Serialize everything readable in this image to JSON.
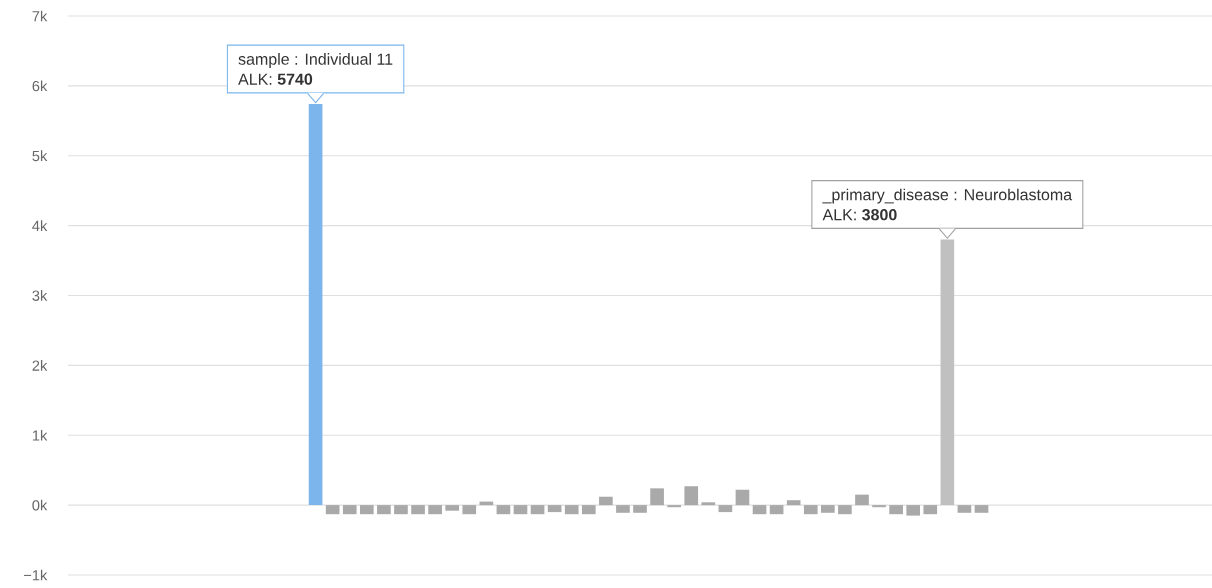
{
  "chart_data": {
    "type": "bar",
    "categories": [
      null,
      null,
      null,
      null,
      null,
      null,
      null,
      null,
      null,
      null,
      null,
      null,
      null,
      null,
      null,
      null,
      null,
      null,
      null,
      null,
      null,
      null,
      null,
      null,
      null,
      null,
      null,
      null,
      null,
      null,
      null,
      null,
      null,
      null,
      null,
      null,
      null,
      null,
      null,
      null,
      null,
      null,
      null,
      null,
      null,
      null,
      null,
      null,
      null,
      null,
      null,
      null,
      null,
      null,
      null,
      null,
      null,
      null,
      null,
      null,
      null,
      null,
      null,
      null,
      null,
      null,
      null
    ],
    "values": [
      null,
      null,
      null,
      null,
      null,
      null,
      null,
      null,
      null,
      null,
      null,
      null,
      null,
      null,
      5740,
      -130,
      -130,
      -130,
      -130,
      -130,
      -130,
      -130,
      -80,
      -130,
      50,
      -130,
      -130,
      -130,
      -100,
      -130,
      -130,
      120,
      -110,
      -110,
      240,
      -30,
      270,
      40,
      -100,
      220,
      -130,
      -130,
      70,
      -130,
      -110,
      -130,
      150,
      -30,
      -130,
      -150,
      -130,
      3800,
      -110,
      -110,
      null,
      null,
      null,
      null,
      null,
      null,
      null,
      null,
      null,
      null,
      null,
      null,
      null
    ],
    "colors": [
      "#a9a9a9",
      "#a9a9a9",
      "#a9a9a9",
      "#a9a9a9",
      "#a9a9a9",
      "#a9a9a9",
      "#a9a9a9",
      "#a9a9a9",
      "#a9a9a9",
      "#a9a9a9",
      "#a9a9a9",
      "#a9a9a9",
      "#a9a9a9",
      "#a9a9a9",
      "#7cb5ec",
      "#a9a9a9",
      "#a9a9a9",
      "#a9a9a9",
      "#a9a9a9",
      "#a9a9a9",
      "#a9a9a9",
      "#a9a9a9",
      "#a9a9a9",
      "#a9a9a9",
      "#a9a9a9",
      "#a9a9a9",
      "#a9a9a9",
      "#a9a9a9",
      "#a9a9a9",
      "#a9a9a9",
      "#a9a9a9",
      "#a9a9a9",
      "#a9a9a9",
      "#a9a9a9",
      "#a9a9a9",
      "#a9a9a9",
      "#a9a9a9",
      "#a9a9a9",
      "#a9a9a9",
      "#a9a9a9",
      "#a9a9a9",
      "#a9a9a9",
      "#a9a9a9",
      "#a9a9a9",
      "#a9a9a9",
      "#a9a9a9",
      "#a9a9a9",
      "#a9a9a9",
      "#a9a9a9",
      "#a9a9a9",
      "#a9a9a9",
      "#c0c0c0",
      "#a9a9a9",
      "#a9a9a9",
      "#a9a9a9",
      "#a9a9a9",
      "#a9a9a9",
      "#a9a9a9",
      "#a9a9a9",
      "#a9a9a9",
      "#a9a9a9",
      "#a9a9a9",
      "#a9a9a9",
      "#a9a9a9",
      "#a9a9a9",
      "#a9a9a9",
      "#a9a9a9"
    ],
    "ylim": [
      -1000,
      7000
    ],
    "yticks": [
      {
        "value": -1000,
        "label": "−1k"
      },
      {
        "value": 0,
        "label": "0k"
      },
      {
        "value": 1000,
        "label": "1k"
      },
      {
        "value": 2000,
        "label": "2k"
      },
      {
        "value": 3000,
        "label": "3k"
      },
      {
        "value": 4000,
        "label": "4k"
      },
      {
        "value": 5000,
        "label": "5k"
      },
      {
        "value": 6000,
        "label": "6k"
      },
      {
        "value": 7000,
        "label": "7k"
      }
    ],
    "grid": "y",
    "annotations": [
      "sample : Individual 11",
      "ALK: **5740**",
      "_primary_disease : Neuroblastoma",
      "ALK: **3800**"
    ]
  }
}
